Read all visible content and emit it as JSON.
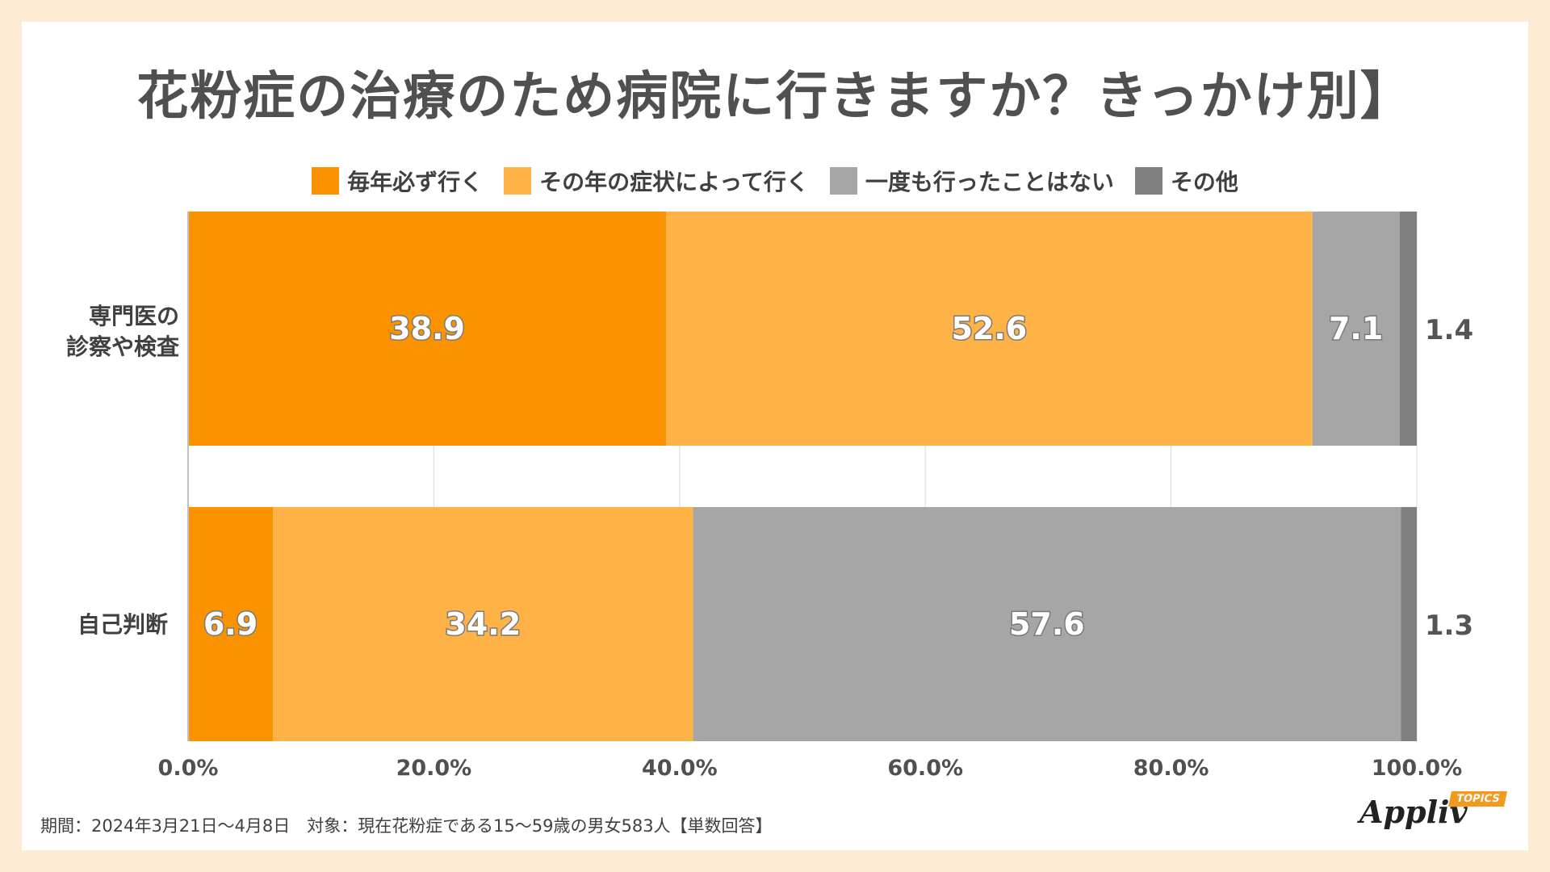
{
  "title": "花粉症の治療のため病院に行きますか？きっかけ別】",
  "footnote": "期間：2024年3月21日～4月8日　対象：現在花粉症である15～59歳の男女583人【単数回答】",
  "logo": {
    "text": "Appliv",
    "badge": "TOPICS"
  },
  "colors": {
    "background": "#fdebd3",
    "series": [
      "#fb9200",
      "#ffb347",
      "#a6a6a6",
      "#808080"
    ]
  },
  "chart_data": {
    "type": "bar",
    "orientation": "horizontal",
    "stacked": true,
    "categories": [
      {
        "line1": "専門医の",
        "line2": "診察や検査"
      },
      {
        "line1": "自己判断",
        "line2": ""
      }
    ],
    "series": [
      {
        "name": "毎年必ず行く",
        "values": [
          38.9,
          6.9
        ]
      },
      {
        "name": "その年の症状によって行く",
        "values": [
          52.6,
          34.2
        ]
      },
      {
        "name": "一度も行ったことはない",
        "values": [
          7.1,
          57.6
        ]
      },
      {
        "name": "その他",
        "values": [
          1.4,
          1.3
        ]
      }
    ],
    "data_labels": [
      [
        "38.9",
        "52.6",
        "7.1",
        "1.4"
      ],
      [
        "6.9",
        "34.2",
        "57.6",
        "1.3"
      ]
    ],
    "xlim": [
      0,
      100
    ],
    "xticks": [
      "0.0%",
      "20.0%",
      "40.0%",
      "60.0%",
      "80.0%",
      "100.0%"
    ],
    "legend_position": "top",
    "grid": true
  }
}
